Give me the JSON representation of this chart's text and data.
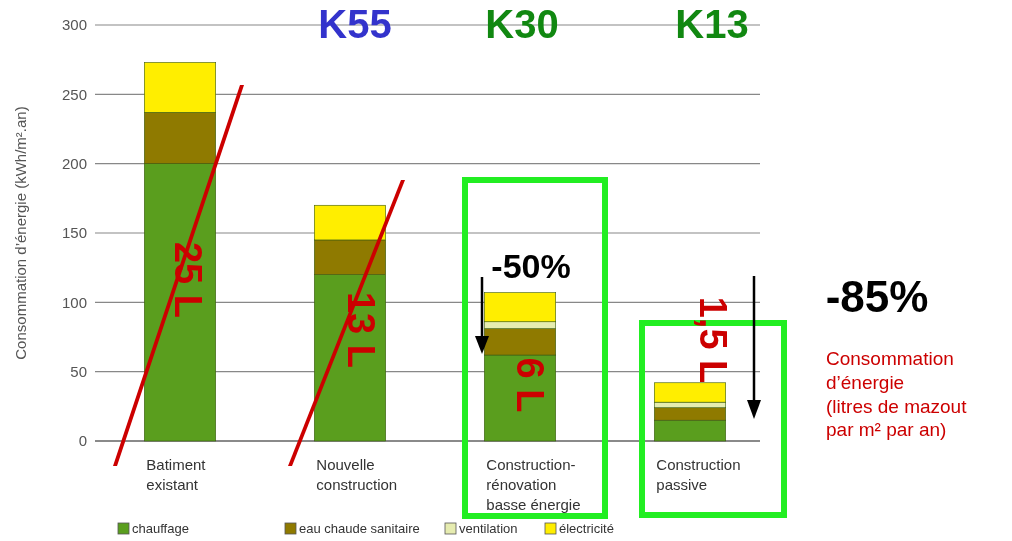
{
  "chart_data": {
    "type": "bar",
    "stacked": true,
    "ylabel": "Consommation d’énergie (kWh/m².an)",
    "categories": [
      "Batiment existant",
      "Nouvelle construction",
      "Construction-rénovation basse énergie",
      "Construction passive"
    ],
    "series": [
      {
        "name": "chauffage",
        "color": "#5a9e1e",
        "values": [
          200,
          120,
          62,
          15
        ]
      },
      {
        "name": "eau chaude sanitaire",
        "color": "#8f7a00",
        "values": [
          37,
          25,
          19,
          9
        ]
      },
      {
        "name": "ventilation",
        "color": "#e6ecb0",
        "values": [
          0,
          0,
          5,
          4
        ]
      },
      {
        "name": "électricité",
        "color": "#ffee00",
        "values": [
          36,
          25,
          21,
          14
        ]
      }
    ],
    "ylim": [
      0,
      300
    ],
    "yticks": [
      0,
      50,
      100,
      150,
      200,
      250,
      300
    ],
    "grid": "y",
    "legend": "bottom",
    "annotations": [
      "K55",
      "K30",
      "K13",
      {
        "text": "-50%",
        "x": "Construction-rénovation basse énergie",
        "y": 107
      },
      "-85%",
      "25 L",
      "13 L",
      "6 L",
      "1,5 L",
      "Consommation\nd’énergie\n(litres de mazout\npar m² par an)"
    ]
  }
}
